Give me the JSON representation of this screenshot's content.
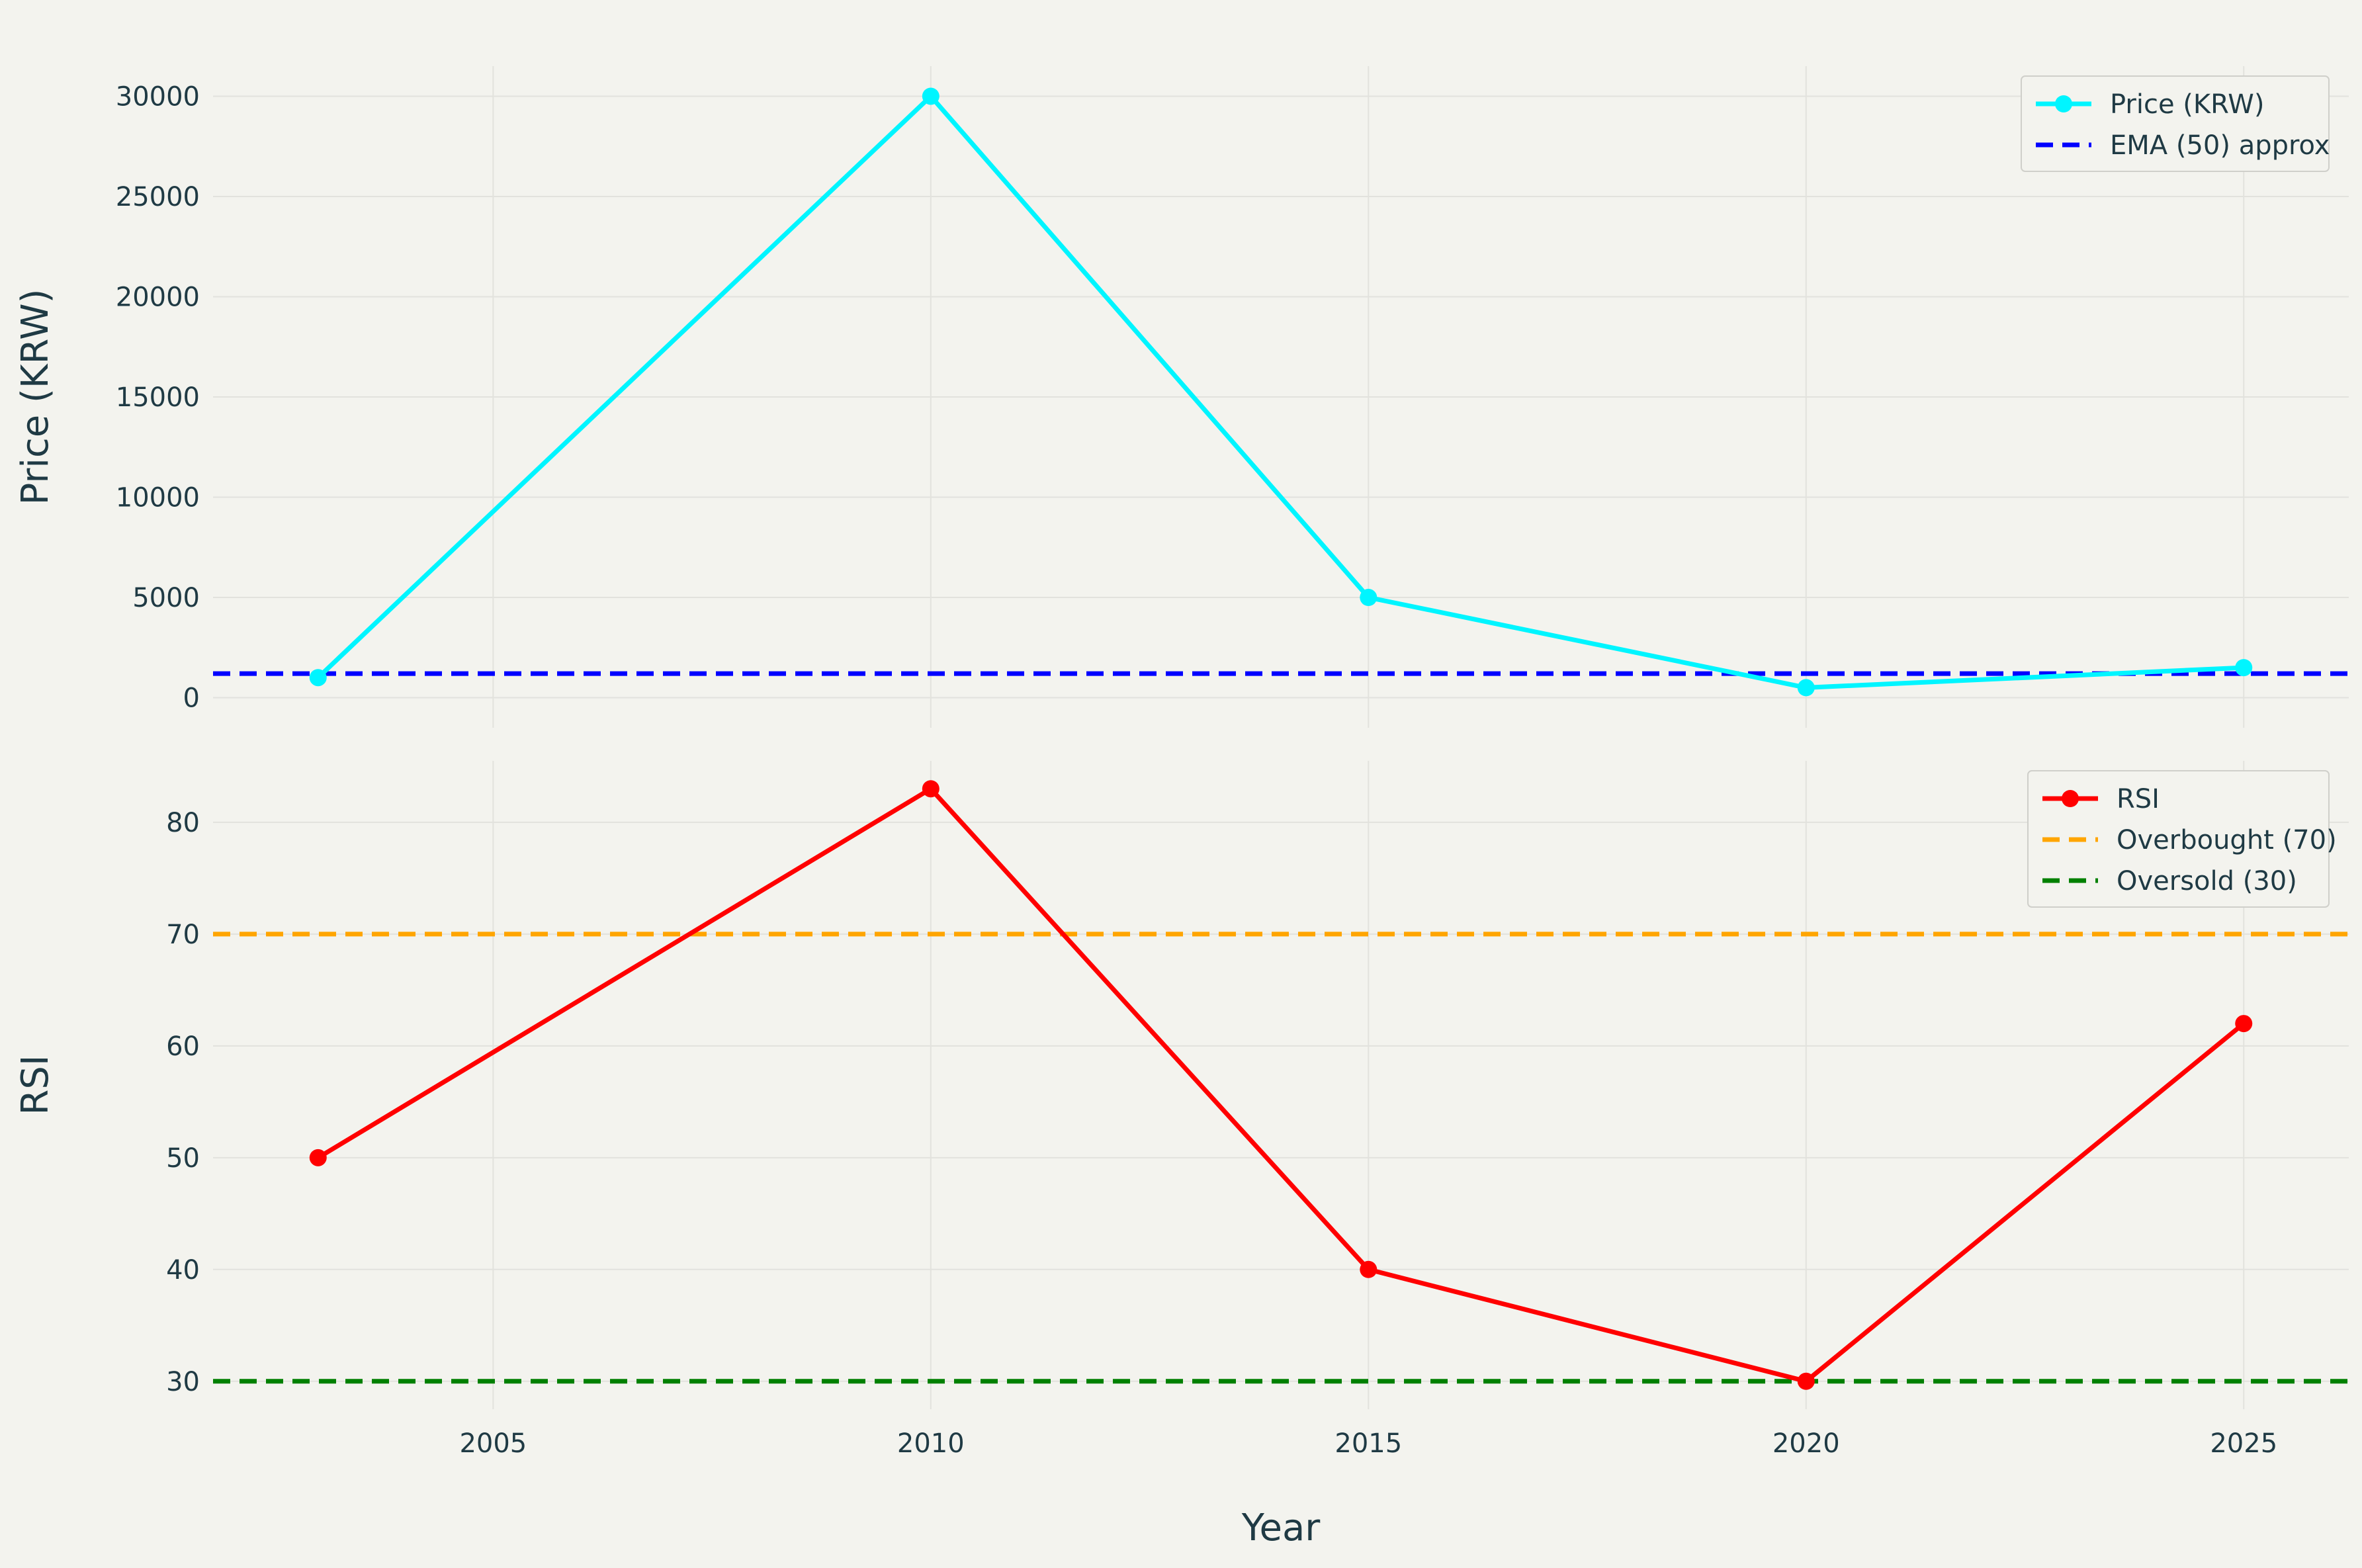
{
  "chart_data": [
    {
      "type": "line",
      "panel": "price",
      "x": [
        2003,
        2010,
        2015,
        2020,
        2025
      ],
      "series": [
        {
          "name": "Price (KRW)",
          "values": [
            1000,
            30000,
            5000,
            500,
            1500
          ],
          "color": "#00f5ff",
          "style": "solid-markers"
        },
        {
          "name": "EMA (50) approx",
          "values": [
            1200,
            1200,
            1200,
            1200,
            1200
          ],
          "color": "#0000ff",
          "style": "dashed",
          "horizontal": true
        }
      ],
      "ylabel": "Price (KRW)",
      "xlabel": "",
      "xlim": [
        2001.8,
        2026.2
      ],
      "ylim": [
        -1500,
        31500
      ],
      "yticks": [
        0,
        5000,
        10000,
        15000,
        20000,
        25000,
        30000
      ],
      "xticks": [
        2005,
        2010,
        2015,
        2020,
        2025
      ],
      "show_x_tick_labels": false,
      "grid": true,
      "legend_position": "top-right"
    },
    {
      "type": "line",
      "panel": "rsi",
      "x": [
        2003,
        2010,
        2015,
        2020,
        2025
      ],
      "series": [
        {
          "name": "RSI",
          "values": [
            50,
            83,
            40,
            30,
            62
          ],
          "color": "#ff0000",
          "style": "solid-markers"
        },
        {
          "name": "Overbought (70)",
          "values": [
            70,
            70,
            70,
            70,
            70
          ],
          "color": "#ffa500",
          "style": "dashed",
          "horizontal": true
        },
        {
          "name": "Oversold (30)",
          "values": [
            30,
            30,
            30,
            30,
            30
          ],
          "color": "#008000",
          "style": "dashed",
          "horizontal": true
        }
      ],
      "ylabel": "RSI",
      "xlabel": "Year",
      "xlim": [
        2001.8,
        2026.2
      ],
      "ylim": [
        27.5,
        85.5
      ],
      "yticks": [
        30,
        40,
        50,
        60,
        70,
        80
      ],
      "xticks": [
        2005,
        2010,
        2015,
        2020,
        2025
      ],
      "show_x_tick_labels": true,
      "grid": true,
      "legend_position": "top-right"
    }
  ]
}
